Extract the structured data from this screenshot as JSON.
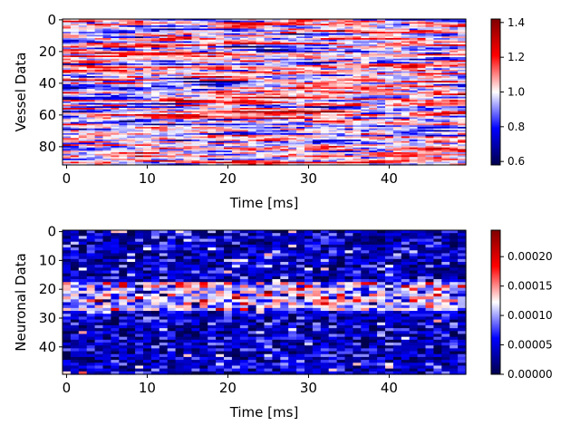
{
  "chart_data": [
    {
      "type": "heatmap",
      "xlabel": "Time [ms]",
      "ylabel": "Vessel Data",
      "rows": 92,
      "cols": 50,
      "xlim": [
        -0.5,
        49.5
      ],
      "ylim": [
        91.5,
        -0.5
      ],
      "x_ticks": [
        0,
        10,
        20,
        30,
        40
      ],
      "y_ticks": [
        0,
        20,
        40,
        60,
        80
      ],
      "colormap": "seismic",
      "colorbar": {
        "range": [
          0.58,
          1.42
        ],
        "ticks": [
          0.6,
          0.8,
          1.0,
          1.2,
          1.4
        ],
        "tick_labels": [
          "0.6",
          "0.8",
          "1.0",
          "1.2",
          "1.4"
        ]
      },
      "value_model": {
        "center": 1.0,
        "typical_range": [
          0.6,
          1.4
        ],
        "structure": "horizontal streaks, values smooth along time within each row"
      }
    },
    {
      "type": "heatmap",
      "xlabel": "Time [ms]",
      "ylabel": "Neuronal Data",
      "rows": 50,
      "cols": 50,
      "xlim": [
        -0.5,
        49.5
      ],
      "ylim": [
        49.5,
        -0.5
      ],
      "x_ticks": [
        0,
        10,
        20,
        30,
        40
      ],
      "y_ticks": [
        0,
        10,
        20,
        30,
        40
      ],
      "colormap": "seismic",
      "colorbar": {
        "range": [
          0.0,
          0.000245
        ],
        "ticks": [
          0.0,
          5e-05,
          0.0001,
          0.00015,
          0.0002
        ],
        "tick_labels": [
          "0.00000",
          "0.00005",
          "0.00010",
          "0.00015",
          "0.00020"
        ]
      },
      "value_model": {
        "baseline": 4e-05,
        "band_rows": [
          18,
          27
        ],
        "band_level": 0.00011,
        "structure": "mostly low values with a brighter horizontal band around rows 18-27"
      }
    }
  ]
}
